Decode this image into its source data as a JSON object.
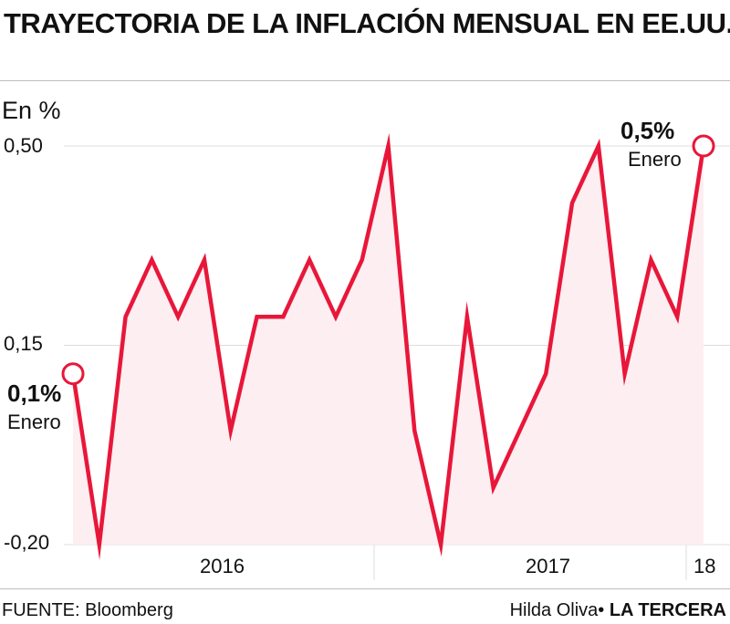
{
  "header": {
    "title": "TRAYECTORIA DE LA INFLACIÓN MENSUAL EN EE.UU."
  },
  "chart_data": {
    "type": "area",
    "title": "TRAYECTORIA DE LA INFLACIÓN MENSUAL EN EE.UU.",
    "ylabel": "En %",
    "ylim": [
      -0.2,
      0.5
    ],
    "yticks": [
      "0,50",
      "0,15",
      "-0,20"
    ],
    "x": [
      "2016-01",
      "2016-02",
      "2016-03",
      "2016-04",
      "2016-05",
      "2016-06",
      "2016-07",
      "2016-08",
      "2016-09",
      "2016-10",
      "2016-11",
      "2016-12",
      "2017-01",
      "2017-02",
      "2017-03",
      "2017-04",
      "2017-05",
      "2017-06",
      "2017-07",
      "2017-08",
      "2017-09",
      "2017-10",
      "2017-11",
      "2017-12",
      "2018-01"
    ],
    "xtick_labels": [
      "2016",
      "2017",
      "18"
    ],
    "series": [
      {
        "values": [
          0.1,
          -0.2,
          0.2,
          0.3,
          0.2,
          0.3,
          0.0,
          0.2,
          0.2,
          0.3,
          0.2,
          0.3,
          0.5,
          0.0,
          -0.2,
          0.2,
          -0.1,
          0.0,
          0.1,
          0.4,
          0.5,
          0.1,
          0.3,
          0.2,
          0.5
        ]
      }
    ],
    "annotations": [
      {
        "value": "0,1%",
        "label": "Enero"
      },
      {
        "value": "0,5%",
        "label": "Enero"
      }
    ],
    "line_color": "#e8173a",
    "fill_color": "#fdeef1",
    "grid": true
  },
  "footer": {
    "source": "FUENTE: Bloomberg",
    "author": "Hilda Oliva",
    "separator": "•",
    "brand": "LA TERCERA"
  }
}
